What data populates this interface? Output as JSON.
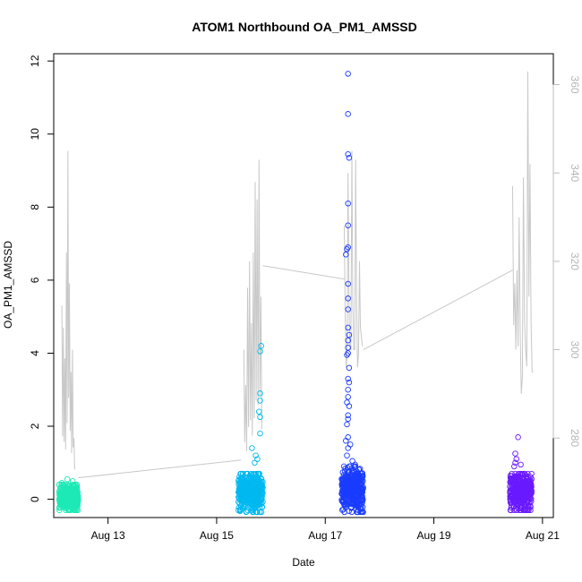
{
  "chart_data": {
    "type": "scatter",
    "title": "ATOM1 Northbound OA_PM1_AMSSD",
    "xlabel": "Date",
    "ylabel": "OA_PM1_AMSSD",
    "x_ticks": [
      "Aug 13",
      "Aug 15",
      "Aug 17",
      "Aug 19",
      "Aug 21"
    ],
    "x_tick_days": [
      13,
      15,
      17,
      19,
      21
    ],
    "xlim": [
      12.0,
      21.2
    ],
    "ylim": [
      -0.5,
      12.2
    ],
    "y_ticks": [
      0,
      2,
      4,
      6,
      8,
      10,
      12
    ],
    "y2lim": [
      262,
      367
    ],
    "y2_ticks": [
      280,
      300,
      320,
      340,
      360
    ],
    "y2_color": "#c8c8c8",
    "grid": false,
    "series": [
      {
        "day": 12.3,
        "color": "#1de9b6",
        "range": [
          12.1,
          12.45
        ],
        "values_summary": {
          "dense_min": -0.3,
          "dense_max": 0.4
        },
        "outliers": [
          [
            12.25,
            0.55
          ],
          [
            12.35,
            0.5
          ],
          [
            12.15,
            0.45
          ]
        ]
      },
      {
        "day": 15.6,
        "color": "#00b8f0",
        "range": [
          15.4,
          15.85
        ],
        "values_summary": {
          "dense_min": -0.35,
          "dense_max": 0.7
        },
        "outliers": [
          [
            15.82,
            4.2
          ],
          [
            15.8,
            4.05
          ],
          [
            15.8,
            2.9
          ],
          [
            15.8,
            2.7
          ],
          [
            15.78,
            2.4
          ],
          [
            15.8,
            2.25
          ],
          [
            15.8,
            1.8
          ],
          [
            15.65,
            1.4
          ],
          [
            15.72,
            1.2
          ],
          [
            15.75,
            1.1
          ],
          [
            15.7,
            1.0
          ]
        ]
      },
      {
        "day": 17.5,
        "color": "#1a3cff",
        "range": [
          17.3,
          17.7
        ],
        "values_summary": {
          "dense_min": -0.35,
          "dense_max": 0.9
        },
        "outliers": [
          [
            17.42,
            11.65
          ],
          [
            17.42,
            10.55
          ],
          [
            17.42,
            9.45
          ],
          [
            17.44,
            9.35
          ],
          [
            17.42,
            8.1
          ],
          [
            17.42,
            7.5
          ],
          [
            17.42,
            6.9
          ],
          [
            17.4,
            6.85
          ],
          [
            17.38,
            6.7
          ],
          [
            17.42,
            5.9
          ],
          [
            17.42,
            5.5
          ],
          [
            17.42,
            5.2
          ],
          [
            17.42,
            4.7
          ],
          [
            17.44,
            4.5
          ],
          [
            17.42,
            4.35
          ],
          [
            17.42,
            4.15
          ],
          [
            17.42,
            4.0
          ],
          [
            17.4,
            3.95
          ],
          [
            17.44,
            3.6
          ],
          [
            17.42,
            3.3
          ],
          [
            17.44,
            3.2
          ],
          [
            17.42,
            3.0
          ],
          [
            17.42,
            2.8
          ],
          [
            17.4,
            2.65
          ],
          [
            17.44,
            2.55
          ],
          [
            17.42,
            2.3
          ],
          [
            17.42,
            2.2
          ],
          [
            17.4,
            2.05
          ],
          [
            17.42,
            1.7
          ],
          [
            17.38,
            1.6
          ],
          [
            17.46,
            1.5
          ],
          [
            17.42,
            1.4
          ],
          [
            17.4,
            1.2
          ],
          [
            17.5,
            1.05
          ],
          [
            17.55,
            0.95
          ]
        ]
      },
      {
        "day": 20.6,
        "color": "#6a1aff",
        "range": [
          20.4,
          20.8
        ],
        "values_summary": {
          "dense_min": -0.3,
          "dense_max": 0.7
        },
        "outliers": [
          [
            20.55,
            1.7
          ],
          [
            20.5,
            1.25
          ],
          [
            20.52,
            1.1
          ],
          [
            20.5,
            1.0
          ],
          [
            20.6,
            0.95
          ],
          [
            20.48,
            0.9
          ]
        ]
      }
    ],
    "secondary_line": {
      "color": "#c8c8c8",
      "segments": [
        {
          "day_start": 12.15,
          "day_end": 12.4,
          "baseline": 270.5,
          "peaks": [
            310,
            305,
            298,
            322,
            345,
            315,
            295,
            300,
            280
          ]
        },
        {
          "day_start": 15.5,
          "day_end": 15.85,
          "baseline": 272,
          "peaks": [
            300,
            292,
            314,
            320,
            306,
            322,
            338,
            334,
            343,
            312
          ]
        },
        {
          "day_start": 17.35,
          "day_end": 17.7,
          "baseline": 300,
          "peaks": [
            328,
            296,
            340,
            300,
            345,
            300,
            343,
            296,
            320,
            303
          ]
        },
        {
          "day_start": 20.45,
          "day_end": 20.85,
          "baseline": 295,
          "peaks": [
            337,
            315,
            318,
            330,
            290,
            339,
            300,
            363,
            342,
            295
          ]
        }
      ],
      "connectors": [
        {
          "from": [
            12.45,
            271
          ],
          "to": [
            15.45,
            275
          ]
        },
        {
          "from": [
            15.85,
            319
          ],
          "to": [
            17.35,
            316
          ]
        },
        {
          "from": [
            17.7,
            300
          ],
          "to": [
            20.45,
            318
          ]
        }
      ]
    }
  }
}
